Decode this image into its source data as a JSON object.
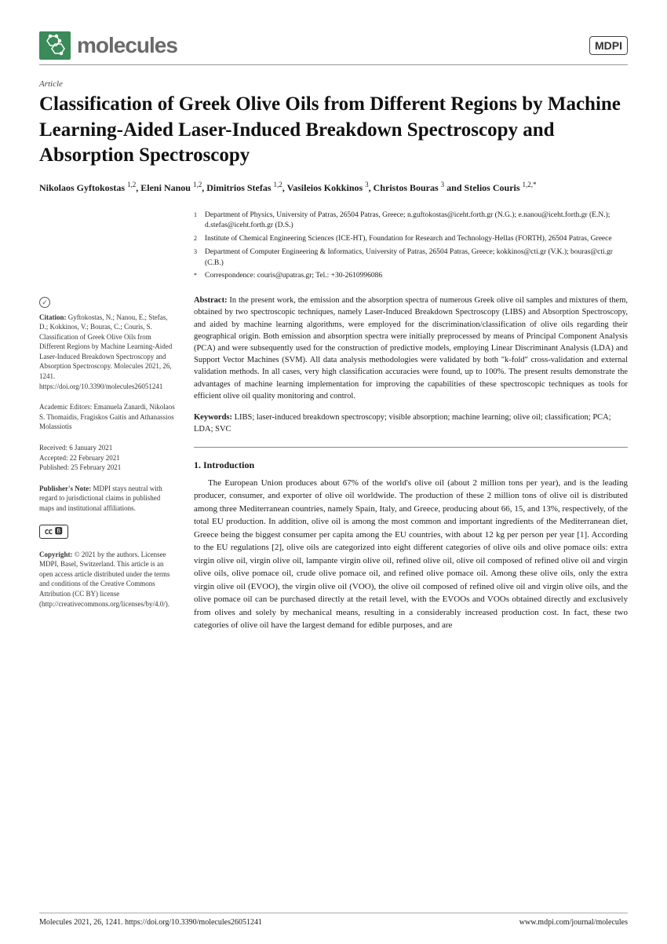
{
  "journal": {
    "name": "molecules",
    "publisher_badge": "MDPI",
    "logo_color": "#3a8a5a",
    "header_rule_color": "#999999"
  },
  "article": {
    "type": "Article",
    "title": "Classification of Greek Olive Oils from Different Regions by Machine Learning-Aided Laser-Induced Breakdown Spectroscopy and Absorption Spectroscopy",
    "authors_html": "Nikolaos Gyftokostas <sup>1,2</sup>, Eleni Nanou <sup>1,2</sup>, Dimitrios Stefas <sup>1,2</sup>, Vasileios Kokkinos <sup>3</sup>, Christos Bouras <sup>3</sup> and Stelios Couris <sup>1,2,*</sup>",
    "affiliations": [
      {
        "num": "1",
        "text": "Department of Physics, University of Patras, 26504 Patras, Greece; n.guftokostas@iceht.forth.gr (N.G.); e.nanou@iceht.forth.gr (E.N.); d.stefas@iceht.forth.gr (D.S.)"
      },
      {
        "num": "2",
        "text": "Institute of Chemical Engineering Sciences (ICE-HT), Foundation for Research and Technology-Hellas (FORTH), 26504 Patras, Greece"
      },
      {
        "num": "3",
        "text": "Department of Computer Engineering & Informatics, University of Patras, 26504 Patras, Greece; kokkinos@cti.gr (V.K.); bouras@cti.gr (C.B.)"
      },
      {
        "num": "*",
        "text": "Correspondence: couris@upatras.gr; Tel.: +30-2610996086"
      }
    ],
    "abstract_label": "Abstract:",
    "abstract": "In the present work, the emission and the absorption spectra of numerous Greek olive oil samples and mixtures of them, obtained by two spectroscopic techniques, namely Laser-Induced Breakdown Spectroscopy (LIBS) and Absorption Spectroscopy, and aided by machine learning algorithms, were employed for the discrimination/classification of olive oils regarding their geographical origin. Both emission and absorption spectra were initially preprocessed by means of Principal Component Analysis (PCA) and were subsequently used for the construction of predictive models, employing Linear Discriminant Analysis (LDA) and Support Vector Machines (SVM). All data analysis methodologies were validated by both \"k-fold\" cross-validation and external validation methods. In all cases, very high classification accuracies were found, up to 100%. The present results demonstrate the advantages of machine learning implementation for improving the capabilities of these spectroscopic techniques as tools for efficient olive oil quality monitoring and control.",
    "keywords_label": "Keywords:",
    "keywords": "LIBS; laser-induced breakdown spectroscopy; visible absorption; machine learning; olive oil; classification; PCA; LDA; SVC"
  },
  "sidebar": {
    "citation_label": "Citation:",
    "citation": "Gyftokostas, N.; Nanou, E.; Stefas, D.; Kokkinos, V.; Bouras, C.; Couris, S. Classification of Greek Olive Oils from Different Regions by Machine Learning-Aided Laser-Induced Breakdown Spectroscopy and Absorption Spectroscopy. Molecules 2021, 26, 1241. https://doi.org/10.3390/molecules26051241",
    "editors_label": "Academic Editors:",
    "editors": "Emanuela Zanardi, Nikolaos S. Thomaidis, Fragiskos Gaitis and Athanassios Molassiotis",
    "received": "Received: 6 January 2021",
    "accepted": "Accepted: 22 February 2021",
    "published": "Published: 25 February 2021",
    "publishers_note_label": "Publisher's Note:",
    "publishers_note": "MDPI stays neutral with regard to jurisdictional claims in published maps and institutional affiliations.",
    "cc_text": "CC BY",
    "copyright_label": "Copyright:",
    "copyright": "© 2021 by the authors. Licensee MDPI, Basel, Switzerland. This article is an open access article distributed under the terms and conditions of the Creative Commons Attribution (CC BY) license (http://creativecommons.org/licenses/by/4.0/)."
  },
  "section": {
    "heading": "1. Introduction",
    "body": "The European Union produces about 67% of the world's olive oil (about 2 million tons per year), and is the leading producer, consumer, and exporter of olive oil worldwide. The production of these 2 million tons of olive oil is distributed among three Mediterranean countries, namely Spain, Italy, and Greece, producing about 66, 15, and 13%, respectively, of the total EU production. In addition, olive oil is among the most common and important ingredients of the Mediterranean diet, Greece being the biggest consumer per capita among the EU countries, with about 12 kg per person per year [1]. According to the EU regulations [2], olive oils are categorized into eight different categories of olive oils and olive pomace oils: extra virgin olive oil, virgin olive oil, lampante virgin olive oil, refined olive oil, olive oil composed of refined olive oil and virgin olive oils, olive pomace oil, crude olive pomace oil, and refined olive pomace oil. Among these olive oils, only the extra virgin olive oil (EVOO), the virgin olive oil (VOO), the olive oil composed of refined olive oil and virgin olive oils, and the olive pomace oil can be purchased directly at the retail level, with the EVOOs and VOOs obtained directly and exclusively from olives and solely by mechanical means, resulting in a considerably increased production cost. In fact, these two categories of olive oil have the largest demand for edible purposes, and are"
  },
  "footer": {
    "left": "Molecules 2021, 26, 1241. https://doi.org/10.3390/molecules26051241",
    "right": "www.mdpi.com/journal/molecules"
  }
}
